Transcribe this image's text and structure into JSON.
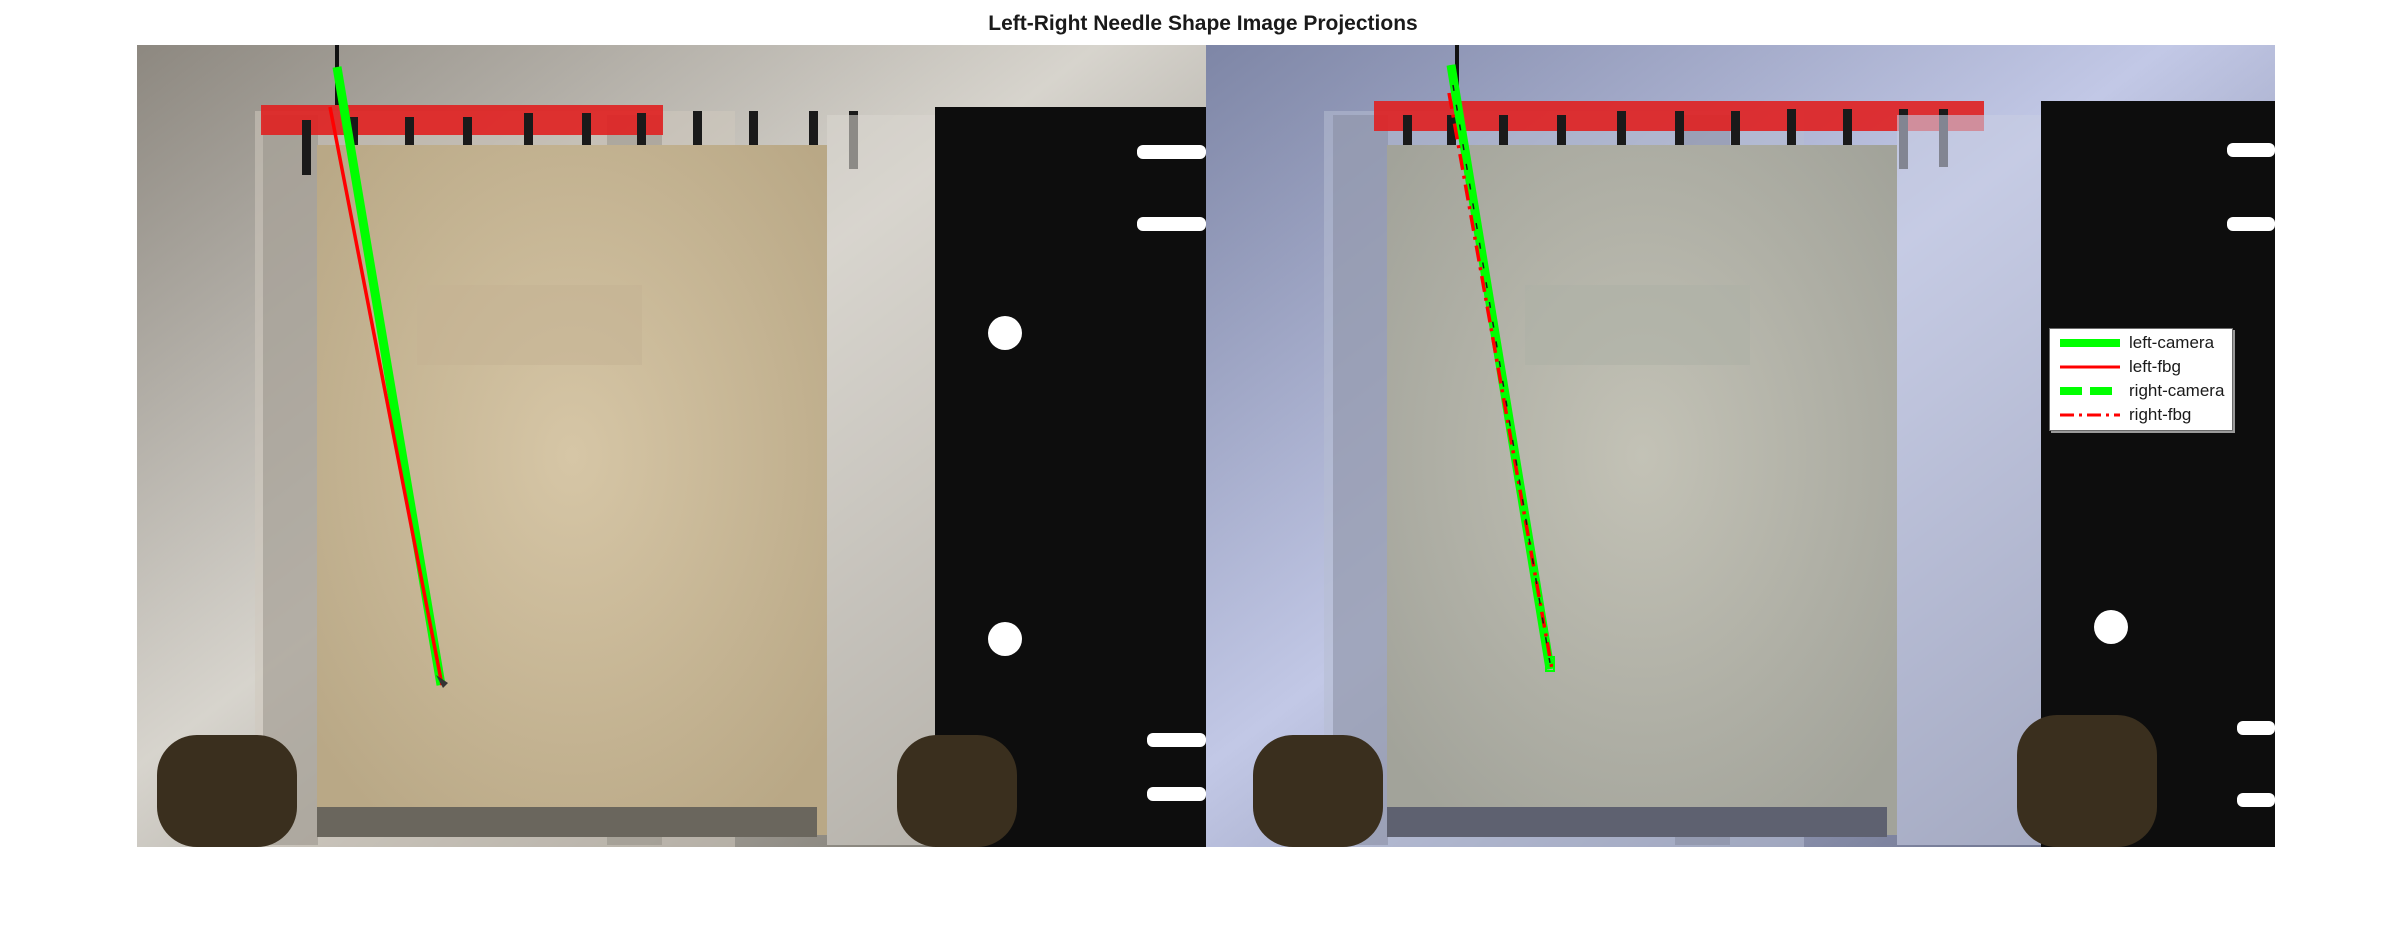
{
  "figure": {
    "title": "Left-Right Needle Shape Image Projections"
  },
  "legend": {
    "items": [
      {
        "label": "left-camera",
        "color": "#00ff00",
        "style": "solid-thick"
      },
      {
        "label": "left-fbg",
        "color": "#ff0000",
        "style": "solid"
      },
      {
        "label": "right-camera",
        "color": "#00ff00",
        "style": "dashed-thick"
      },
      {
        "label": "right-fbg",
        "color": "#ff0000",
        "style": "dash-dot"
      }
    ]
  },
  "colors": {
    "left_image_tint": "#d9c7a6",
    "right_image_tint": "#a9b4d6",
    "camera_line": "#00ff00",
    "fbg_line": "#ff0000",
    "phantom_top_bar": "#e02020"
  }
}
